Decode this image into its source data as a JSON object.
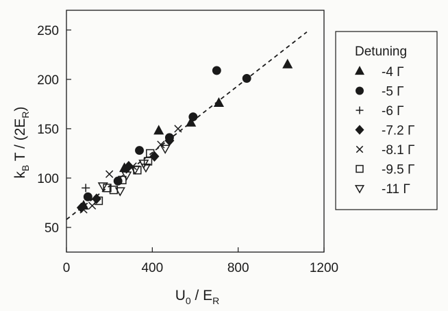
{
  "chart_data": {
    "type": "scatter",
    "xlabel": {
      "main": "U",
      "sub": "0",
      "rest": " / E",
      "sub2": "R"
    },
    "ylabel": {
      "main": "k",
      "sub": "B",
      "rest": " T / (2E",
      "sub2": "R",
      "close": ")"
    },
    "xlim": [
      0,
      1200
    ],
    "ylim": [
      25,
      270
    ],
    "xticks": [
      0,
      400,
      800,
      1200
    ],
    "yticks": [
      50,
      100,
      150,
      200,
      250
    ],
    "grid": false,
    "legend": {
      "title": "Detuning",
      "placement": "outside-right"
    },
    "series": [
      {
        "name": "-4 Γ",
        "marker": "triangle-up",
        "filled": true,
        "points": [
          [
            80,
            72
          ],
          [
            270,
            110
          ],
          [
            430,
            148
          ],
          [
            580,
            156
          ],
          [
            710,
            176
          ],
          [
            1030,
            215
          ]
        ]
      },
      {
        "name": "-5 Γ",
        "marker": "circle",
        "filled": true,
        "points": [
          [
            100,
            81
          ],
          [
            240,
            97
          ],
          [
            340,
            128
          ],
          [
            480,
            141
          ],
          [
            590,
            162
          ],
          [
            700,
            209
          ],
          [
            840,
            201
          ]
        ]
      },
      {
        "name": "-6 Γ",
        "marker": "plus",
        "filled": false,
        "points": [
          [
            90,
            90
          ]
        ]
      },
      {
        "name": "-7.2 Γ",
        "marker": "diamond",
        "filled": true,
        "points": [
          [
            70,
            70
          ],
          [
            140,
            79
          ],
          [
            290,
            112
          ],
          [
            410,
            122
          ],
          [
            480,
            138
          ]
        ]
      },
      {
        "name": "-8.1 Γ",
        "marker": "x",
        "filled": false,
        "points": [
          [
            80,
            68
          ],
          [
            120,
            72
          ],
          [
            200,
            104
          ],
          [
            310,
            112
          ],
          [
            440,
            134
          ],
          [
            520,
            150
          ]
        ]
      },
      {
        "name": "-9.5 Γ",
        "marker": "square",
        "filled": false,
        "points": [
          [
            150,
            77
          ],
          [
            190,
            90
          ],
          [
            220,
            88
          ],
          [
            260,
            98
          ],
          [
            330,
            108
          ],
          [
            390,
            125
          ],
          [
            380,
            117
          ]
        ]
      },
      {
        "name": "-11 Γ",
        "marker": "triangle-down",
        "filled": false,
        "points": [
          [
            170,
            92
          ],
          [
            250,
            87
          ],
          [
            280,
            103
          ],
          [
            320,
            109
          ],
          [
            360,
            115
          ],
          [
            370,
            111
          ],
          [
            460,
            130
          ]
        ]
      }
    ],
    "fit_line": {
      "style": "dashed",
      "x": [
        0,
        1120
      ],
      "y": [
        58,
        248
      ]
    }
  }
}
